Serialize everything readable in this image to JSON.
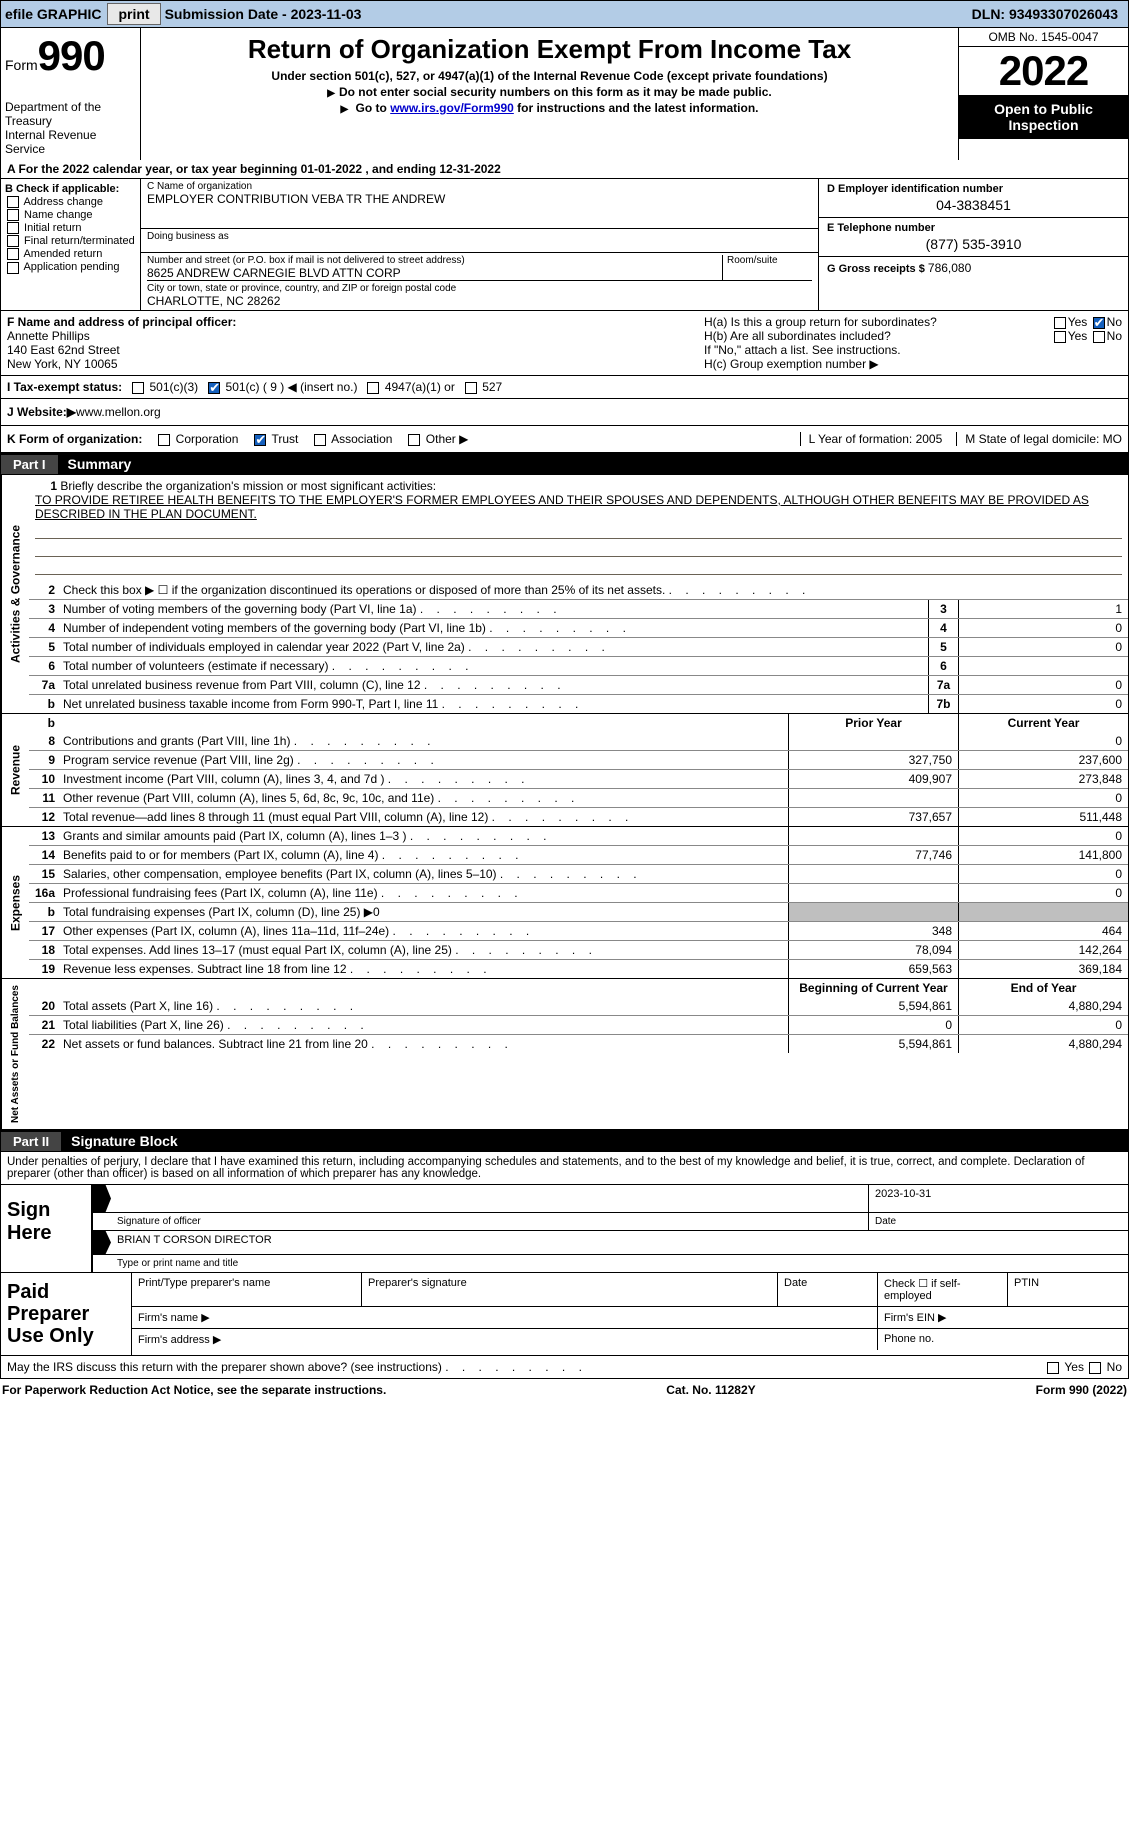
{
  "top": {
    "efile": "efile GRAPHIC",
    "print": "print",
    "sub_label": "Submission Date - ",
    "sub_date": "2023-11-03",
    "dln_label": "DLN: ",
    "dln": "93493307026043"
  },
  "header": {
    "form_word": "Form",
    "form_num": "990",
    "dept1": "Department of the Treasury",
    "dept2": "Internal Revenue Service",
    "title": "Return of Organization Exempt From Income Tax",
    "sub1": "Under section 501(c), 527, or 4947(a)(1) of the Internal Revenue Code (except private foundations)",
    "sub2": "Do not enter social security numbers on this form as it may be made public.",
    "sub3_a": "Go to ",
    "sub3_link": "www.irs.gov/Form990",
    "sub3_b": " for instructions and the latest information.",
    "omb": "OMB No. 1545-0047",
    "year": "2022",
    "open": "Open to Public Inspection"
  },
  "line_a": "A  For the 2022 calendar year, or tax year beginning 01-01-2022    , and ending 12-31-2022",
  "box_b": {
    "hdr": "B Check if applicable:",
    "opts": [
      "Address change",
      "Name change",
      "Initial return",
      "Final return/terminated",
      "Amended return",
      "Application pending"
    ]
  },
  "box_c": {
    "name_label": "C Name of organization",
    "name": "EMPLOYER CONTRIBUTION VEBA TR THE ANDREW",
    "dba_label": "Doing business as",
    "addr_label": "Number and street (or P.O. box if mail is not delivered to street address)",
    "room_label": "Room/suite",
    "addr": "8625 ANDREW CARNEGIE BLVD ATTN CORP",
    "city_label": "City or town, state or province, country, and ZIP or foreign postal code",
    "city": "CHARLOTTE, NC  28262"
  },
  "box_d": {
    "ein_label": "D Employer identification number",
    "ein": "04-3838451",
    "phone_label": "E Telephone number",
    "phone": "(877) 535-3910",
    "gross_label": "G Gross receipts $ ",
    "gross": "786,080"
  },
  "officer": {
    "label": "F  Name and address of principal officer:",
    "name": "Annette Phillips",
    "addr1": "140 East 62nd Street",
    "addr2": "New York, NY  10065",
    "h_a": "H(a)  Is this a group return for subordinates?",
    "h_b": "H(b)  Are all subordinates included?",
    "h_b_note": "If \"No,\" attach a list. See instructions.",
    "h_c": "H(c)  Group exemption number ▶",
    "yes": "Yes",
    "no": "No"
  },
  "status": {
    "label": "I  Tax-exempt status:",
    "a": "501(c)(3)",
    "b": "501(c) ( 9 ) ◀ (insert no.)",
    "c": "4947(a)(1) or",
    "d": "527"
  },
  "website": {
    "label": "J  Website:▶ ",
    "val": "www.mellon.org"
  },
  "formorg": {
    "label": "K Form of organization:",
    "opts": [
      "Corporation",
      "Trust",
      "Association",
      "Other ▶"
    ],
    "l": "L Year of formation: 2005",
    "m": "M State of legal domicile: MO"
  },
  "part1": {
    "tab": "Part I",
    "title": "Summary"
  },
  "mission": {
    "q": "Briefly describe the organization's mission or most significant activities:",
    "text": "TO PROVIDE RETIREE HEALTH BENEFITS TO THE EMPLOYER'S FORMER EMPLOYEES AND THEIR SPOUSES AND DEPENDENTS, ALTHOUGH OTHER BENEFITS MAY BE PROVIDED AS DESCRIBED IN THE PLAN DOCUMENT."
  },
  "lines_single": [
    {
      "n": "2",
      "d": "Check this box ▶ ☐  if the organization discontinued its operations or disposed of more than 25% of its net assets."
    },
    {
      "n": "3",
      "d": "Number of voting members of the governing body (Part VI, line 1a)",
      "bn": "3",
      "v": "1"
    },
    {
      "n": "4",
      "d": "Number of independent voting members of the governing body (Part VI, line 1b)",
      "bn": "4",
      "v": "0"
    },
    {
      "n": "5",
      "d": "Total number of individuals employed in calendar year 2022 (Part V, line 2a)",
      "bn": "5",
      "v": "0"
    },
    {
      "n": "6",
      "d": "Total number of volunteers (estimate if necessary)",
      "bn": "6",
      "v": ""
    },
    {
      "n": "7a",
      "d": "Total unrelated business revenue from Part VIII, column (C), line 12",
      "bn": "7a",
      "v": "0"
    },
    {
      "n": "b",
      "d": "Net unrelated business taxable income from Form 990-T, Part I, line 11",
      "bn": "7b",
      "v": "0"
    }
  ],
  "col_hdrs": {
    "prior": "Prior Year",
    "current": "Current Year"
  },
  "revenue": [
    {
      "n": "8",
      "d": "Contributions and grants (Part VIII, line 1h)",
      "p": "",
      "c": "0"
    },
    {
      "n": "9",
      "d": "Program service revenue (Part VIII, line 2g)",
      "p": "327,750",
      "c": "237,600"
    },
    {
      "n": "10",
      "d": "Investment income (Part VIII, column (A), lines 3, 4, and 7d )",
      "p": "409,907",
      "c": "273,848"
    },
    {
      "n": "11",
      "d": "Other revenue (Part VIII, column (A), lines 5, 6d, 8c, 9c, 10c, and 11e)",
      "p": "",
      "c": "0"
    },
    {
      "n": "12",
      "d": "Total revenue—add lines 8 through 11 (must equal Part VIII, column (A), line 12)",
      "p": "737,657",
      "c": "511,448"
    }
  ],
  "expenses": [
    {
      "n": "13",
      "d": "Grants and similar amounts paid (Part IX, column (A), lines 1–3 )",
      "p": "",
      "c": "0"
    },
    {
      "n": "14",
      "d": "Benefits paid to or for members (Part IX, column (A), line 4)",
      "p": "77,746",
      "c": "141,800"
    },
    {
      "n": "15",
      "d": "Salaries, other compensation, employee benefits (Part IX, column (A), lines 5–10)",
      "p": "",
      "c": "0"
    },
    {
      "n": "16a",
      "d": "Professional fundraising fees (Part IX, column (A), line 11e)",
      "p": "",
      "c": "0"
    },
    {
      "n": "b",
      "d": "Total fundraising expenses (Part IX, column (D), line 25) ▶0",
      "gray": true
    },
    {
      "n": "17",
      "d": "Other expenses (Part IX, column (A), lines 11a–11d, 11f–24e)",
      "p": "348",
      "c": "464"
    },
    {
      "n": "18",
      "d": "Total expenses. Add lines 13–17 (must equal Part IX, column (A), line 25)",
      "p": "78,094",
      "c": "142,264"
    },
    {
      "n": "19",
      "d": "Revenue less expenses. Subtract line 18 from line 12",
      "p": "659,563",
      "c": "369,184"
    }
  ],
  "net_hdrs": {
    "begin": "Beginning of Current Year",
    "end": "End of Year"
  },
  "net": [
    {
      "n": "20",
      "d": "Total assets (Part X, line 16)",
      "p": "5,594,861",
      "c": "4,880,294"
    },
    {
      "n": "21",
      "d": "Total liabilities (Part X, line 26)",
      "p": "0",
      "c": "0"
    },
    {
      "n": "22",
      "d": "Net assets or fund balances. Subtract line 21 from line 20",
      "p": "5,594,861",
      "c": "4,880,294"
    }
  ],
  "part2": {
    "tab": "Part II",
    "title": "Signature Block"
  },
  "sig_text": "Under penalties of perjury, I declare that I have examined this return, including accompanying schedules and statements, and to the best of my knowledge and belief, it is true, correct, and complete. Declaration of preparer (other than officer) is based on all information of which preparer has any knowledge.",
  "sign": {
    "here": "Sign Here",
    "sig_label": "Signature of officer",
    "date_label": "Date",
    "date": "2023-10-31",
    "name": "BRIAN T CORSON  DIRECTOR",
    "name_label": "Type or print name and title"
  },
  "prep": {
    "left": "Paid Preparer Use Only",
    "c1": "Print/Type preparer's name",
    "c2": "Preparer's signature",
    "c3": "Date",
    "c4": "Check ☐ if self-employed",
    "c5": "PTIN",
    "f1": "Firm's name   ▶",
    "f2": "Firm's EIN ▶",
    "a1": "Firm's address ▶",
    "a2": "Phone no."
  },
  "discuss": "May the IRS discuss this return with the preparer shown above? (see instructions)",
  "footer": {
    "left": "For Paperwork Reduction Act Notice, see the separate instructions.",
    "mid": "Cat. No. 11282Y",
    "right": "Form 990 (2022)"
  },
  "sides": {
    "gov": "Activities & Governance",
    "rev": "Revenue",
    "exp": "Expenses",
    "net": "Net Assets or Fund Balances"
  }
}
